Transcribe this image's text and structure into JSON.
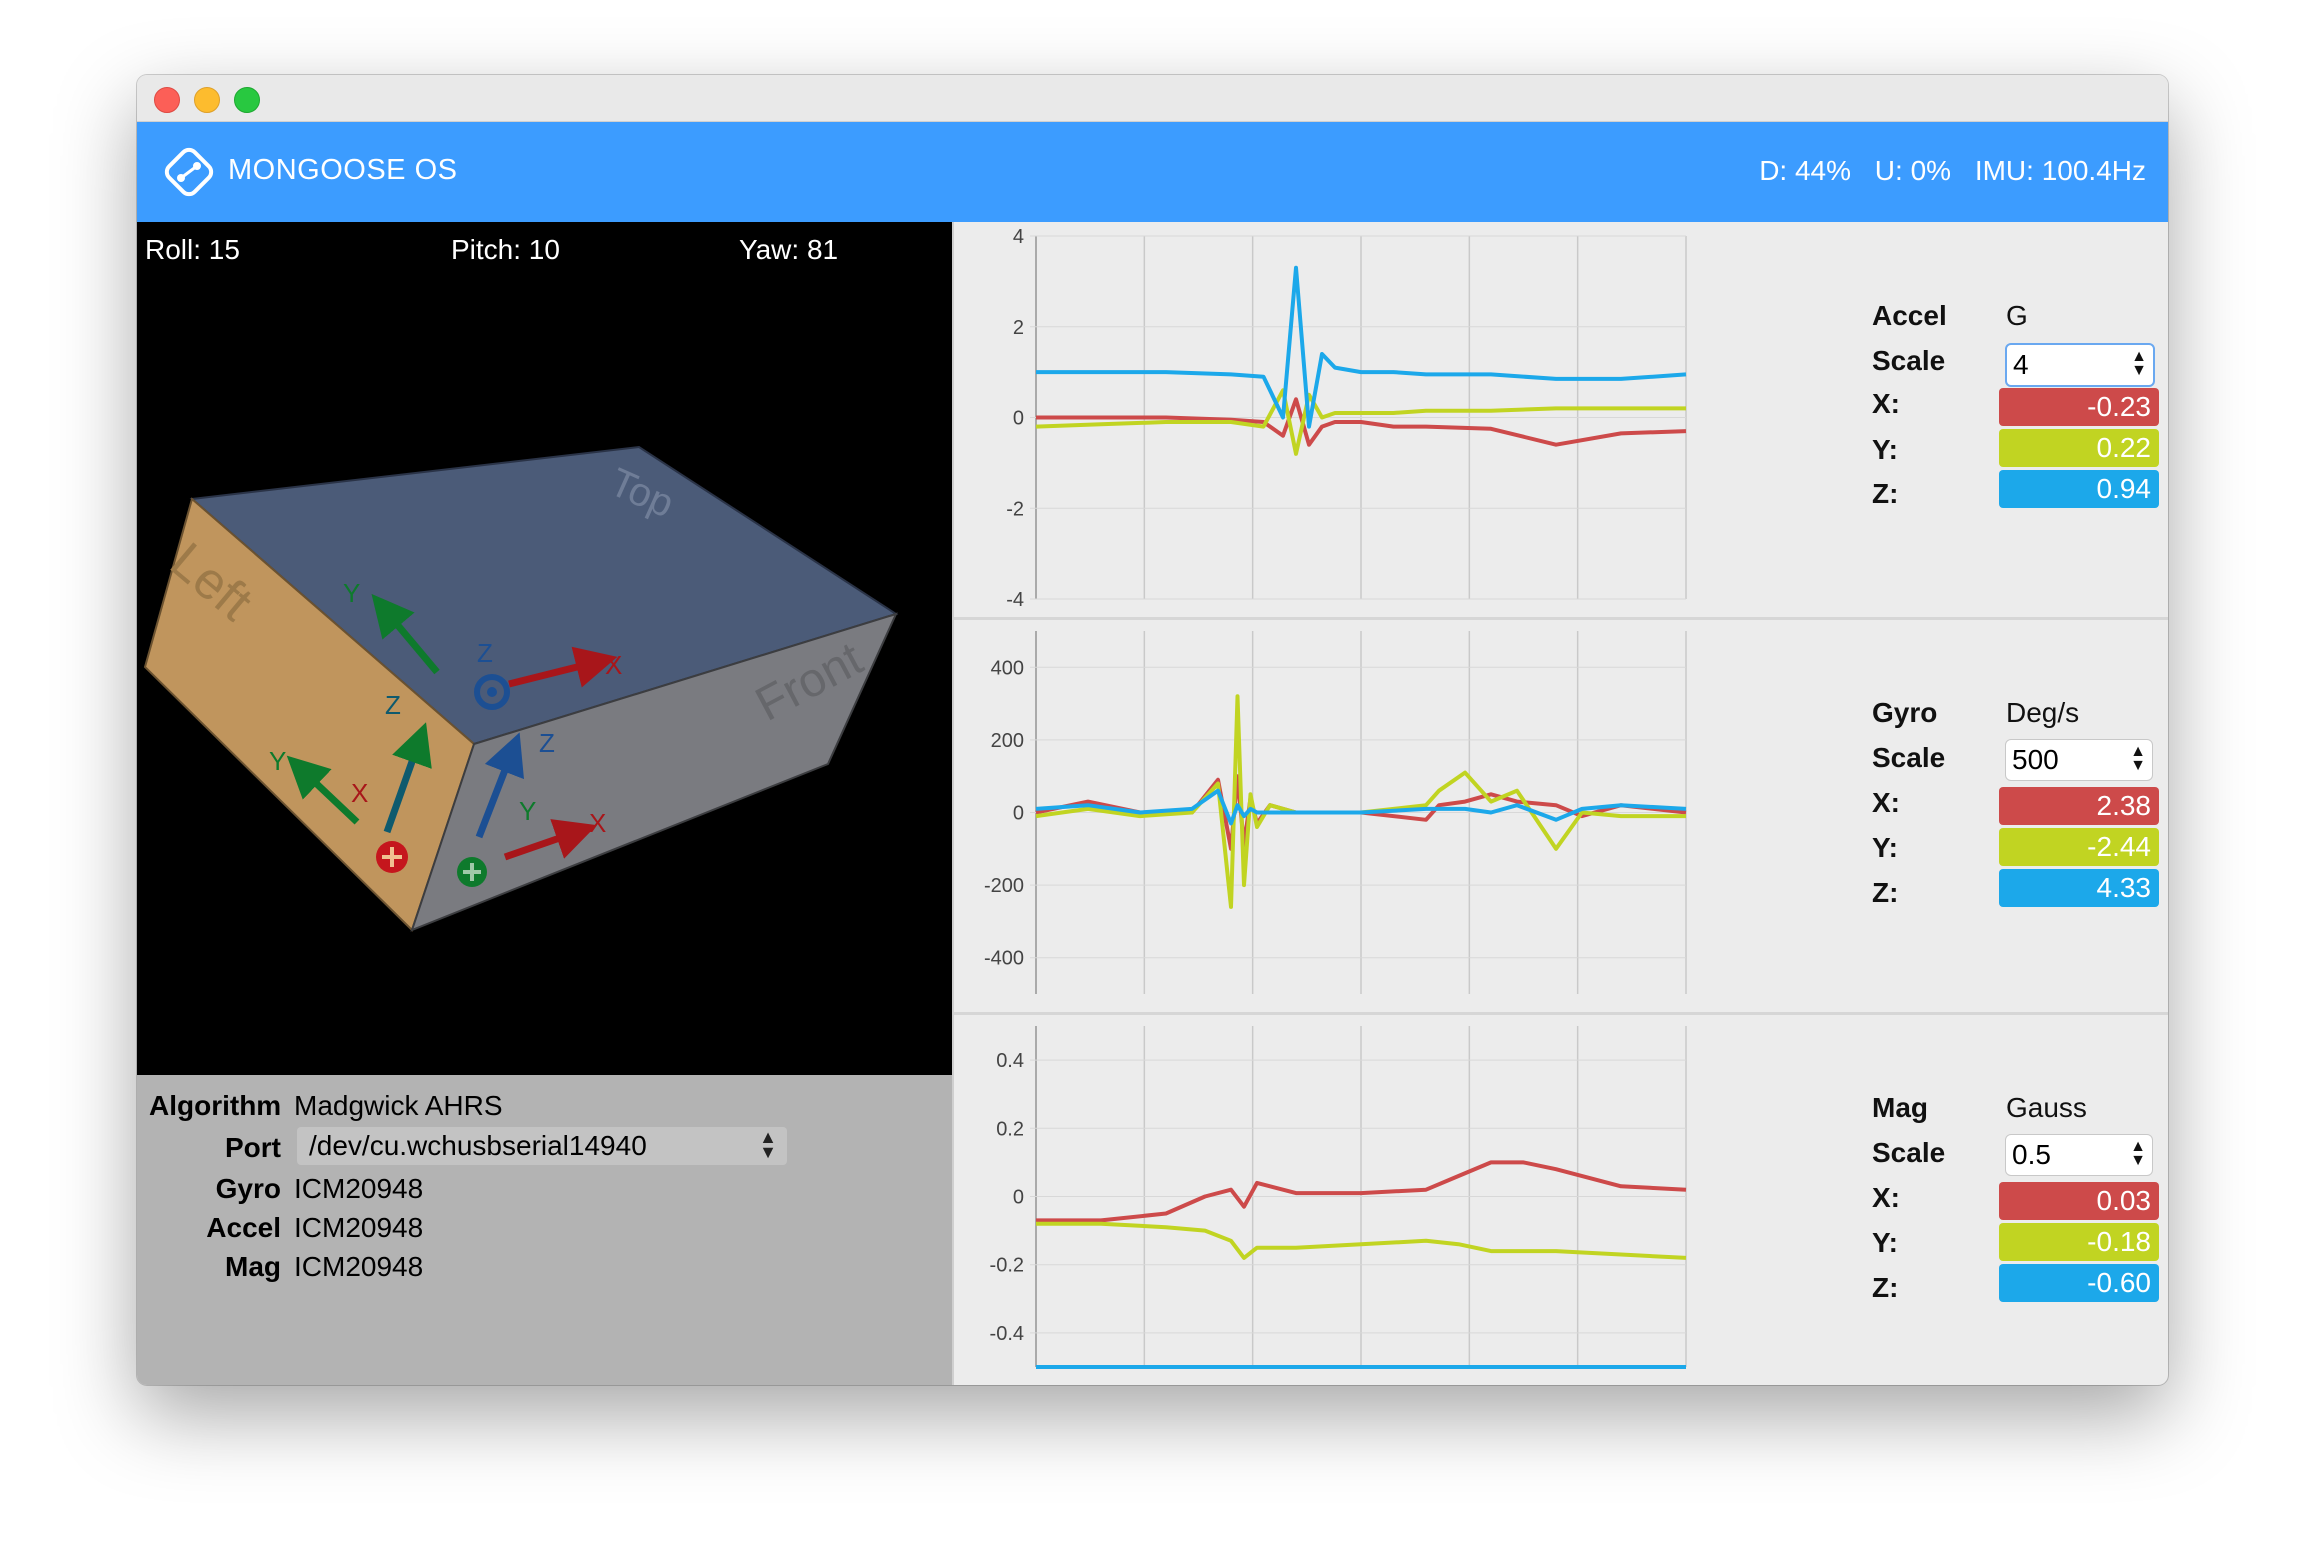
{
  "window": {
    "traffic_lights": [
      "close",
      "minimize",
      "zoom"
    ]
  },
  "header": {
    "brand": "MONGOOSE OS",
    "logo_icon": "mongoose-logo-icon",
    "stats": {
      "d": "D: 44%",
      "u": "U: 0%",
      "imu": "IMU: 100.4Hz"
    }
  },
  "orientation": {
    "roll": "Roll: 15",
    "pitch": "Pitch: 10",
    "yaw": "Yaw: 81"
  },
  "cube_faces": {
    "top": "Top",
    "left": "Left",
    "front": "Front"
  },
  "axis_labels": {
    "x": "X",
    "y": "Y",
    "z": "Z"
  },
  "info": {
    "algorithm_label": "Algorithm",
    "algorithm_value": "Madgwick AHRS",
    "port_label": "Port",
    "port_value": "/dev/cu.wchusbserial14940",
    "gyro_label": "Gyro",
    "gyro_value": "ICM20948",
    "accel_label": "Accel",
    "accel_value": "ICM20948",
    "mag_label": "Mag",
    "mag_value": "ICM20948"
  },
  "colors": {
    "x": "#cd4a4a",
    "y": "#c1d422",
    "z": "#1ca8ea",
    "header": "#3c9cff"
  },
  "sensors": [
    {
      "name": "Accel",
      "unit": "G",
      "scale_label": "Scale",
      "scale": "4",
      "x_label": "X:",
      "y_label": "Y:",
      "z_label": "Z:",
      "x": "-0.23",
      "y": "0.22",
      "z": "0.94"
    },
    {
      "name": "Gyro",
      "unit": "Deg/s",
      "scale_label": "Scale",
      "scale": "500",
      "x_label": "X:",
      "y_label": "Y:",
      "z_label": "Z:",
      "x": "2.38",
      "y": "-2.44",
      "z": "4.33"
    },
    {
      "name": "Mag",
      "unit": "Gauss",
      "scale_label": "Scale",
      "scale": "0.5",
      "x_label": "X:",
      "y_label": "Y:",
      "z_label": "Z:",
      "x": "0.03",
      "y": "-0.18",
      "z": "-0.60"
    }
  ],
  "chart_data": [
    {
      "type": "line",
      "ylim": [
        -4,
        4
      ],
      "yticks": [
        "4",
        "2",
        "0",
        "-2",
        "-4"
      ],
      "x": [
        0,
        10,
        20,
        30,
        35,
        38,
        40,
        42,
        44,
        46,
        50,
        55,
        60,
        70,
        80,
        90,
        100
      ],
      "series": [
        {
          "color": "#cd4a4a",
          "values": [
            0.0,
            0.0,
            0.0,
            -0.05,
            -0.1,
            -0.4,
            0.4,
            -0.6,
            -0.2,
            -0.1,
            -0.1,
            -0.2,
            -0.2,
            -0.25,
            -0.6,
            -0.35,
            -0.3
          ]
        },
        {
          "color": "#c1d422",
          "values": [
            -0.2,
            -0.15,
            -0.1,
            -0.1,
            -0.2,
            0.6,
            -0.8,
            0.5,
            0.0,
            0.1,
            0.1,
            0.1,
            0.15,
            0.15,
            0.2,
            0.2,
            0.2
          ]
        },
        {
          "color": "#1ca8ea",
          "values": [
            1.0,
            1.0,
            1.0,
            0.95,
            0.9,
            0.0,
            3.3,
            -0.2,
            1.4,
            1.1,
            1.0,
            1.0,
            0.95,
            0.95,
            0.85,
            0.85,
            0.95
          ]
        }
      ]
    },
    {
      "type": "line",
      "ylim": [
        -500,
        500
      ],
      "yticks": [
        "400",
        "200",
        "0",
        "-200",
        "-400"
      ],
      "x": [
        0,
        8,
        16,
        24,
        28,
        30,
        31,
        32,
        33,
        34,
        36,
        40,
        50,
        60,
        62,
        66,
        70,
        74,
        80,
        84,
        90,
        100
      ],
      "series": [
        {
          "color": "#cd4a4a",
          "values": [
            0,
            30,
            0,
            0,
            90,
            -100,
            100,
            -90,
            40,
            -30,
            20,
            0,
            0,
            -20,
            20,
            30,
            50,
            30,
            20,
            -10,
            20,
            0
          ]
        },
        {
          "color": "#c1d422",
          "values": [
            -10,
            10,
            -10,
            0,
            80,
            -260,
            320,
            -200,
            50,
            -40,
            20,
            0,
            0,
            20,
            60,
            110,
            30,
            60,
            -100,
            0,
            -10,
            -10
          ]
        },
        {
          "color": "#1ca8ea",
          "values": [
            10,
            20,
            0,
            10,
            60,
            -30,
            20,
            -10,
            10,
            0,
            0,
            0,
            0,
            10,
            10,
            10,
            0,
            20,
            -20,
            10,
            20,
            10
          ]
        }
      ]
    },
    {
      "type": "line",
      "ylim": [
        -0.5,
        0.5
      ],
      "yticks": [
        "0.4",
        "0.2",
        "0",
        "-0.2",
        "-0.4"
      ],
      "x": [
        0,
        10,
        20,
        26,
        30,
        32,
        34,
        40,
        50,
        60,
        65,
        70,
        75,
        80,
        90,
        100
      ],
      "series": [
        {
          "color": "#cd4a4a",
          "values": [
            -0.07,
            -0.07,
            -0.05,
            0.0,
            0.02,
            -0.03,
            0.04,
            0.01,
            0.01,
            0.02,
            0.06,
            0.1,
            0.1,
            0.08,
            0.03,
            0.02
          ]
        },
        {
          "color": "#c1d422",
          "values": [
            -0.08,
            -0.08,
            -0.09,
            -0.1,
            -0.13,
            -0.18,
            -0.15,
            -0.15,
            -0.14,
            -0.13,
            -0.14,
            -0.16,
            -0.16,
            -0.16,
            -0.17,
            -0.18
          ]
        },
        {
          "color": "#1ca8ea",
          "values": [
            -0.5,
            -0.5,
            -0.5,
            -0.5,
            -0.5,
            -0.5,
            -0.5,
            -0.5,
            -0.5,
            -0.5,
            -0.5,
            -0.5,
            -0.5,
            -0.5,
            -0.5,
            -0.5
          ]
        }
      ]
    }
  ]
}
